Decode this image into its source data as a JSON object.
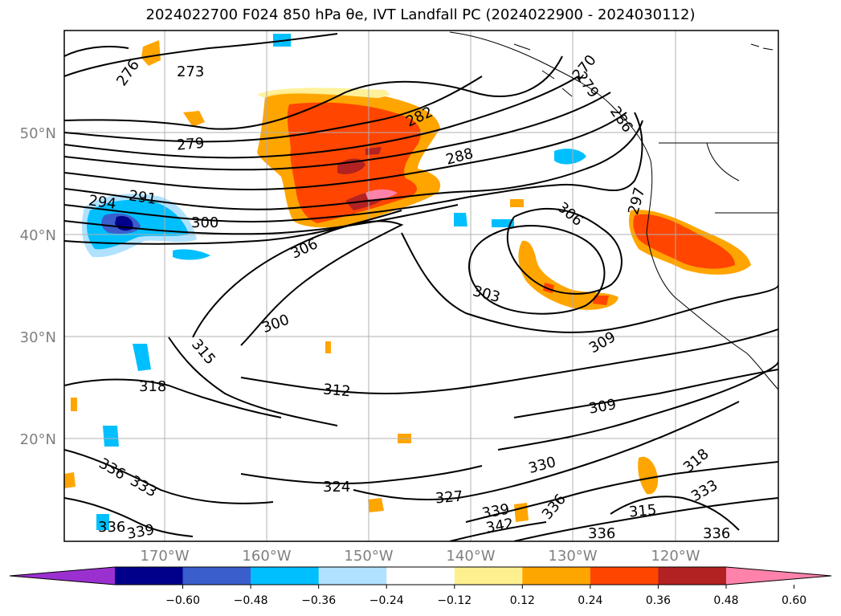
{
  "title": "2024022700 F024 850 hPa θe, IVT Landfall PC (2024022900 - 2024030112)",
  "lat_labels": [
    "50°N",
    "40°N",
    "30°N",
    "20°N"
  ],
  "lon_labels": [
    "170°W",
    "160°W",
    "150°W",
    "140°W",
    "130°W",
    "120°W"
  ],
  "colorbar": {
    "ticks": [
      "−0.60",
      "−0.48",
      "−0.36",
      "−0.24",
      "−0.12",
      "0.12",
      "0.24",
      "0.36",
      "0.48",
      "0.60"
    ],
    "colors": [
      "#9b30d0",
      "#00008b",
      "#3a5fcd",
      "#00bfff",
      "#b0e2ff",
      "#ffffff",
      "#fff08f",
      "#ffa500",
      "#ff4500",
      "#b22222",
      "#ff82ab"
    ]
  },
  "contour_labels": [
    "273",
    "276",
    "279",
    "282",
    "288",
    "291",
    "294",
    "300",
    "306",
    "306",
    "303",
    "297",
    "300",
    "309",
    "315",
    "318",
    "312",
    "309",
    "324",
    "327",
    "330",
    "336",
    "336",
    "333",
    "336",
    "339",
    "339",
    "342",
    "315",
    "318",
    "333",
    "336",
    "336",
    "270",
    "279",
    "286"
  ],
  "map_elements": {
    "coastline": "coastline",
    "contours": "theta-e contours",
    "shading": "ivt-pc shading"
  }
}
